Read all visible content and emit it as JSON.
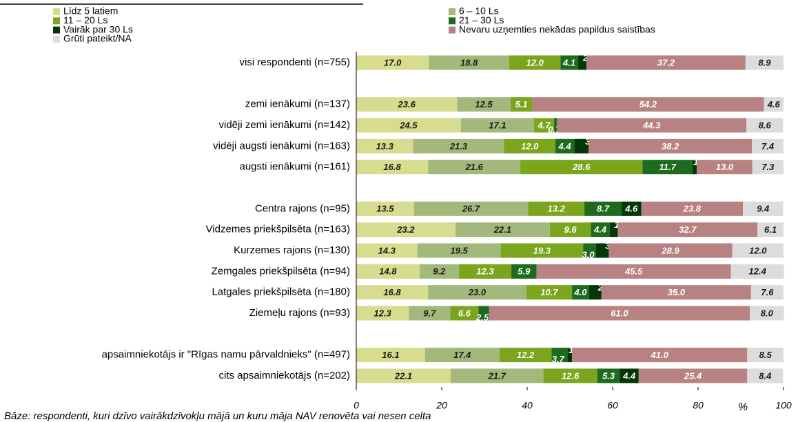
{
  "chart_data": {
    "type": "stacked_bar_horizontal",
    "categories": [
      "visi respondenti (n=755)",
      null,
      "zemi ienākumi (n=137)",
      "vidēji zemi ienākumi (n=142)",
      "vidēji augsti ienākumi (n=163)",
      "augsti ienākumi (n=161)",
      null,
      "Centra rajons (n=95)",
      "Vidzemes priekšpilsēta (n=163)",
      "Kurzemes rajons (n=130)",
      "Zemgales priekšpilsēta (n=94)",
      "Latgales priekšpilsēta (n=180)",
      "Ziemeļu rajons (n=93)",
      null,
      "apsaimniekotājs ir \"Rīgas namu pārvaldnieks\" (n=497)",
      "cits apsaimniekotājs (n=202)"
    ],
    "series": [
      {
        "name": "Līdz 5 latiem",
        "color": "#d7dc8f",
        "values": [
          17.0,
          null,
          23.6,
          24.5,
          13.3,
          16.8,
          null,
          13.5,
          23.2,
          14.3,
          14.8,
          16.8,
          12.3,
          null,
          16.1,
          22.1
        ],
        "value_labels": [
          "17.0",
          null,
          "23.6",
          "24.5",
          "13.3",
          "16.8",
          null,
          "13.5",
          "23.2",
          "14.3",
          "14.8",
          "16.8",
          "12.3",
          null,
          "16.1",
          "22.1"
        ]
      },
      {
        "name": "6 – 10 Ls",
        "color": "#a3b97c",
        "values": [
          18.8,
          null,
          12.5,
          17.1,
          21.3,
          21.6,
          null,
          26.7,
          22.1,
          19.5,
          9.2,
          23.0,
          9.7,
          null,
          17.4,
          21.7
        ],
        "value_labels": [
          "18.8",
          null,
          "12.5",
          "17.1",
          "21.3",
          "21.6",
          null,
          "26.7",
          "22.1",
          "19.5",
          "9.2",
          "23.0",
          "9.7",
          null,
          "17.4",
          "21.7"
        ]
      },
      {
        "name": "11 – 20 Ls",
        "color": "#7ba51c",
        "values": [
          12.0,
          null,
          5.1,
          4.7,
          12.0,
          28.6,
          null,
          13.2,
          9.6,
          19.3,
          12.3,
          10.7,
          6.6,
          null,
          12.2,
          12.6
        ],
        "value_labels": [
          "12.0",
          null,
          "5.1",
          "4.7",
          "12.0",
          "28.6",
          null,
          "13.2",
          "9.6",
          "19.3",
          "12.3",
          "10.7",
          "6.6",
          null,
          "12.2",
          "12.6"
        ]
      },
      {
        "name": "21 – 30 Ls",
        "color": "#1e6b1e",
        "values": [
          4.1,
          null,
          null,
          0.7,
          4.4,
          11.7,
          null,
          8.7,
          4.4,
          3.0,
          5.9,
          4.0,
          2.5,
          null,
          3.7,
          5.3
        ],
        "value_labels": [
          "4.1",
          null,
          null,
          "0.7",
          "4.4",
          "11.7",
          null,
          "8.7",
          "4.4",
          "3.0",
          "5.9",
          "4.0",
          "2.5",
          null,
          "3.7",
          "5.3"
        ]
      },
      {
        "name": "Vairāk par 30 Ls",
        "color": "#053605",
        "values": [
          2.0,
          null,
          null,
          null,
          3.4,
          1.0,
          null,
          4.6,
          1.9,
          3.0,
          null,
          2.9,
          null,
          null,
          1.1,
          4.4
        ],
        "value_labels": [
          "2.0",
          null,
          null,
          null,
          "3.4",
          "1.0",
          null,
          "4.6",
          "1.9",
          "3.0",
          null,
          "2.9",
          null,
          null,
          "1.1",
          "4.4"
        ]
      },
      {
        "name": "Nevaru uzņemties nekādas papildus saistības",
        "color": "#b98282",
        "values": [
          37.2,
          null,
          54.2,
          44.3,
          38.2,
          13.0,
          null,
          23.8,
          32.7,
          28.9,
          45.5,
          35.0,
          61.0,
          null,
          41.0,
          25.4
        ],
        "value_labels": [
          "37.2",
          null,
          "54.2",
          "44.3",
          "38.2",
          "13.0",
          null,
          "23.8",
          "32.7",
          "28.9",
          "45.5",
          "35.0",
          "61.0",
          null,
          "41.0",
          "25.4"
        ]
      },
      {
        "name": "Grūti pateikt/NA",
        "color": "#dcdcdc",
        "values": [
          8.9,
          null,
          4.6,
          8.6,
          7.4,
          7.3,
          null,
          9.4,
          6.1,
          12.0,
          12.4,
          7.6,
          8.0,
          null,
          8.5,
          8.4
        ],
        "value_labels": [
          "8.9",
          null,
          "4.6",
          "8.6",
          "7.4",
          "7.3",
          null,
          "9.4",
          "6.1",
          "12.0",
          "12.4",
          "7.6",
          "8.0",
          null,
          "8.5",
          "8.4"
        ]
      }
    ],
    "xlim": [
      0,
      100
    ],
    "xticks": [
      0,
      20,
      40,
      60,
      80,
      100
    ],
    "xlabel": "%",
    "note": "Bāze: respondenti, kuri dzīvo vairākdzīvokļu mājā un kuru māja NAV renovēta vai nesen celta"
  }
}
